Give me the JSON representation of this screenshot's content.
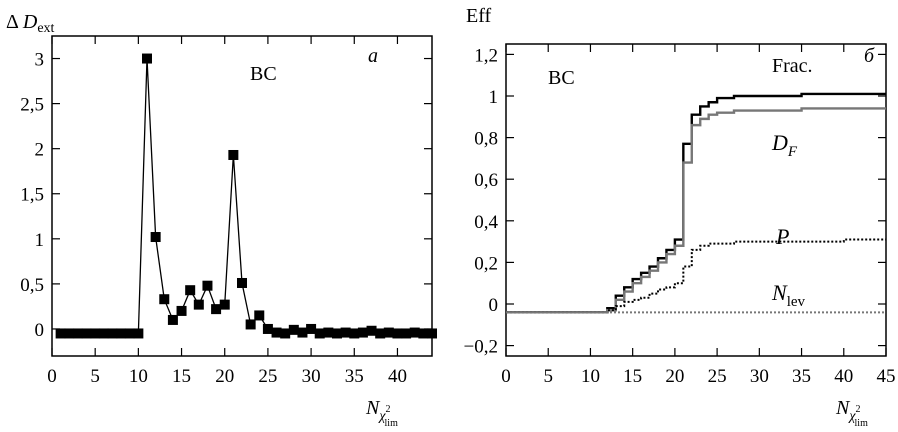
{
  "chart_data": [
    {
      "panel_label": "a",
      "type": "line",
      "ylabel": "ΔD_ext",
      "xlabel": "N_χ²_lim",
      "annotation": "BC",
      "xlim": [
        0,
        44
      ],
      "ylim": [
        -0.3,
        3.25
      ],
      "xticks": [
        0,
        5,
        10,
        15,
        20,
        25,
        30,
        35,
        40
      ],
      "xtick_labels": [
        "0",
        "5",
        "10",
        "15",
        "20",
        "25",
        "30",
        "35",
        "40"
      ],
      "yticks": [
        0,
        0.5,
        1,
        1.5,
        2,
        2.5,
        3
      ],
      "ytick_labels": [
        "0",
        "0,5",
        "1",
        "1,5",
        "2",
        "2,5",
        "3"
      ],
      "marker": "square",
      "series": [
        {
          "x": [
            1,
            2,
            3,
            4,
            5,
            6,
            7,
            8,
            9,
            10,
            11,
            12,
            13,
            14,
            15,
            16,
            17,
            18,
            19,
            20,
            21,
            22,
            23,
            24,
            25,
            26,
            27,
            28,
            29,
            30,
            31,
            32,
            33,
            34,
            35,
            36,
            37,
            38,
            39,
            40,
            41,
            42,
            43,
            44
          ],
          "y": [
            -0.05,
            -0.05,
            -0.05,
            -0.05,
            -0.05,
            -0.05,
            -0.05,
            -0.05,
            -0.05,
            -0.05,
            3.0,
            1.02,
            0.33,
            0.1,
            0.2,
            0.43,
            0.27,
            0.48,
            0.22,
            0.27,
            1.93,
            0.51,
            0.05,
            0.15,
            0.0,
            -0.04,
            -0.05,
            -0.01,
            -0.04,
            0.0,
            -0.05,
            -0.04,
            -0.05,
            -0.04,
            -0.05,
            -0.04,
            -0.02,
            -0.05,
            -0.04,
            -0.05,
            -0.05,
            -0.04,
            -0.05,
            -0.05
          ]
        }
      ]
    },
    {
      "panel_label": "б",
      "type": "line",
      "ylabel": "Eff",
      "xlabel": "N_χ²_lim",
      "annotation": "BC",
      "xlim": [
        0,
        45
      ],
      "ylim": [
        -0.25,
        1.25
      ],
      "xticks": [
        0,
        5,
        10,
        15,
        20,
        25,
        30,
        35,
        40,
        45
      ],
      "xtick_labels": [
        "0",
        "5",
        "10",
        "15",
        "20",
        "25",
        "30",
        "35",
        "40",
        "45"
      ],
      "yticks": [
        -0.2,
        0,
        0.2,
        0.4,
        0.6,
        0.8,
        1,
        1.2
      ],
      "ytick_labels": [
        "−0,2",
        "0",
        "0,2",
        "0,4",
        "0,6",
        "0,8",
        "1",
        "1,2"
      ],
      "series": [
        {
          "name": "Frac.",
          "color": "#000000",
          "style": "step",
          "x": [
            0,
            11,
            12,
            13,
            14,
            15,
            16,
            17,
            18,
            19,
            20,
            21,
            22,
            23,
            24,
            25,
            27,
            30,
            35,
            40,
            45
          ],
          "y": [
            -0.04,
            -0.04,
            -0.02,
            0.04,
            0.08,
            0.12,
            0.15,
            0.18,
            0.22,
            0.26,
            0.31,
            0.77,
            0.91,
            0.95,
            0.97,
            0.99,
            1.0,
            1.0,
            1.01,
            1.01,
            1.01
          ]
        },
        {
          "name": "D_F",
          "color": "#777777",
          "style": "step",
          "x": [
            0,
            11,
            12,
            13,
            14,
            15,
            16,
            17,
            18,
            19,
            20,
            21,
            22,
            23,
            24,
            25,
            27,
            30,
            35,
            40,
            45
          ],
          "y": [
            -0.04,
            -0.04,
            -0.03,
            0.02,
            0.06,
            0.1,
            0.13,
            0.16,
            0.2,
            0.24,
            0.28,
            0.68,
            0.86,
            0.89,
            0.91,
            0.92,
            0.93,
            0.93,
            0.94,
            0.94,
            0.94
          ]
        },
        {
          "name": "P",
          "color": "#000000",
          "style": "dotted-step",
          "x": [
            0,
            11,
            12,
            13,
            14,
            15,
            16,
            17,
            18,
            19,
            20,
            21,
            22,
            23,
            24,
            25,
            27,
            30,
            35,
            40,
            45
          ],
          "y": [
            -0.04,
            -0.04,
            -0.03,
            -0.01,
            0.01,
            0.02,
            0.03,
            0.05,
            0.07,
            0.08,
            0.1,
            0.18,
            0.26,
            0.28,
            0.29,
            0.29,
            0.3,
            0.3,
            0.3,
            0.31,
            0.31
          ]
        },
        {
          "name": "N_lev",
          "color": "#777777",
          "style": "dotted",
          "x": [
            0,
            45
          ],
          "y": [
            -0.04,
            -0.04
          ]
        }
      ]
    }
  ]
}
